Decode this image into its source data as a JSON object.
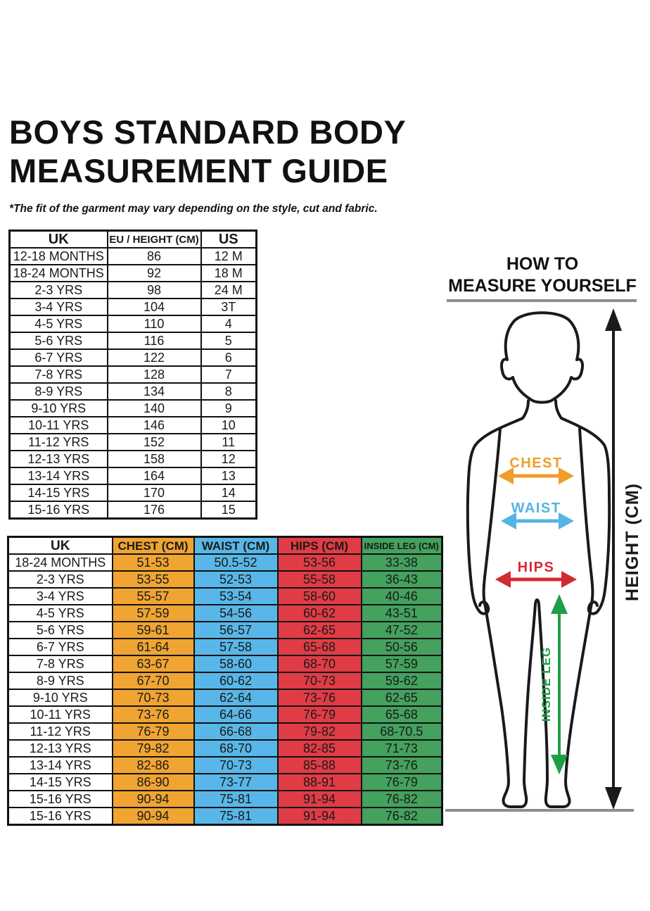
{
  "page": {
    "title_line1": "BOYS STANDARD BODY",
    "title_line2": "MEASUREMENT GUIDE",
    "disclaimer": "*The fit of the garment may vary depending on the style, cut and fabric."
  },
  "size_table": {
    "headers": [
      "UK",
      "EU / HEIGHT (CM)",
      "US"
    ],
    "rows": [
      [
        "12-18 MONTHS",
        "86",
        "12 M"
      ],
      [
        "18-24 MONTHS",
        "92",
        "18 M"
      ],
      [
        "2-3 YRS",
        "98",
        "24 M"
      ],
      [
        "3-4 YRS",
        "104",
        "3T"
      ],
      [
        "4-5 YRS",
        "110",
        "4"
      ],
      [
        "5-6 YRS",
        "116",
        "5"
      ],
      [
        "6-7 YRS",
        "122",
        "6"
      ],
      [
        "7-8 YRS",
        "128",
        "7"
      ],
      [
        "8-9 YRS",
        "134",
        "8"
      ],
      [
        "9-10 YRS",
        "140",
        "9"
      ],
      [
        "10-11 YRS",
        "146",
        "10"
      ],
      [
        "11-12 YRS",
        "152",
        "11"
      ],
      [
        "12-13 YRS",
        "158",
        "12"
      ],
      [
        "13-14 YRS",
        "164",
        "13"
      ],
      [
        "14-15 YRS",
        "170",
        "14"
      ],
      [
        "15-16 YRS",
        "176",
        "15"
      ]
    ]
  },
  "body_table": {
    "headers": [
      "UK",
      "CHEST (CM)",
      "WAIST (CM)",
      "HIPS (CM)",
      "INSIDE LEG (CM)"
    ],
    "rows": [
      [
        "18-24 MONTHS",
        "51-53",
        "50.5-52",
        "53-56",
        "33-38"
      ],
      [
        "2-3 YRS",
        "53-55",
        "52-53",
        "55-58",
        "36-43"
      ],
      [
        "3-4 YRS",
        "55-57",
        "53-54",
        "58-60",
        "40-46"
      ],
      [
        "4-5 YRS",
        "57-59",
        "54-56",
        "60-62",
        "43-51"
      ],
      [
        "5-6 YRS",
        "59-61",
        "56-57",
        "62-65",
        "47-52"
      ],
      [
        "6-7 YRS",
        "61-64",
        "57-58",
        "65-68",
        "50-56"
      ],
      [
        "7-8 YRS",
        "63-67",
        "58-60",
        "68-70",
        "57-59"
      ],
      [
        "8-9 YRS",
        "67-70",
        "60-62",
        "70-73",
        "59-62"
      ],
      [
        "9-10 YRS",
        "70-73",
        "62-64",
        "73-76",
        "62-65"
      ],
      [
        "10-11 YRS",
        "73-76",
        "64-66",
        "76-79",
        "65-68"
      ],
      [
        "11-12 YRS",
        "76-79",
        "66-68",
        "79-82",
        "68-70.5"
      ],
      [
        "12-13 YRS",
        "79-82",
        "68-70",
        "82-85",
        "71-73"
      ],
      [
        "13-14 YRS",
        "82-86",
        "70-73",
        "85-88",
        "73-76"
      ],
      [
        "14-15 YRS",
        "86-90",
        "73-77",
        "88-91",
        "76-79"
      ],
      [
        "15-16 YRS",
        "90-94",
        "75-81",
        "91-94",
        "76-82"
      ],
      [
        "15-16 YRS",
        "90-94",
        "75-81",
        "91-94",
        "76-82"
      ]
    ]
  },
  "diagram": {
    "title_line1": "HOW TO",
    "title_line2": "MEASURE YOURSELF",
    "labels": {
      "chest": "CHEST",
      "waist": "WAIST",
      "hips": "HIPS",
      "inside_leg": "INSIDE LEG",
      "height": "HEIGHT (CM)"
    }
  },
  "colors": {
    "chest": "#F0A432",
    "waist": "#58B7E8",
    "hips": "#E03C46",
    "inside_leg": "#44A15E",
    "diagram_chest": "#F09C28",
    "diagram_waist": "#54B4E4",
    "diagram_hips": "#D42A33",
    "diagram_inside_leg": "#1E9E47",
    "ink": "#1A1A1A",
    "gray_line": "#8E8E8E"
  }
}
